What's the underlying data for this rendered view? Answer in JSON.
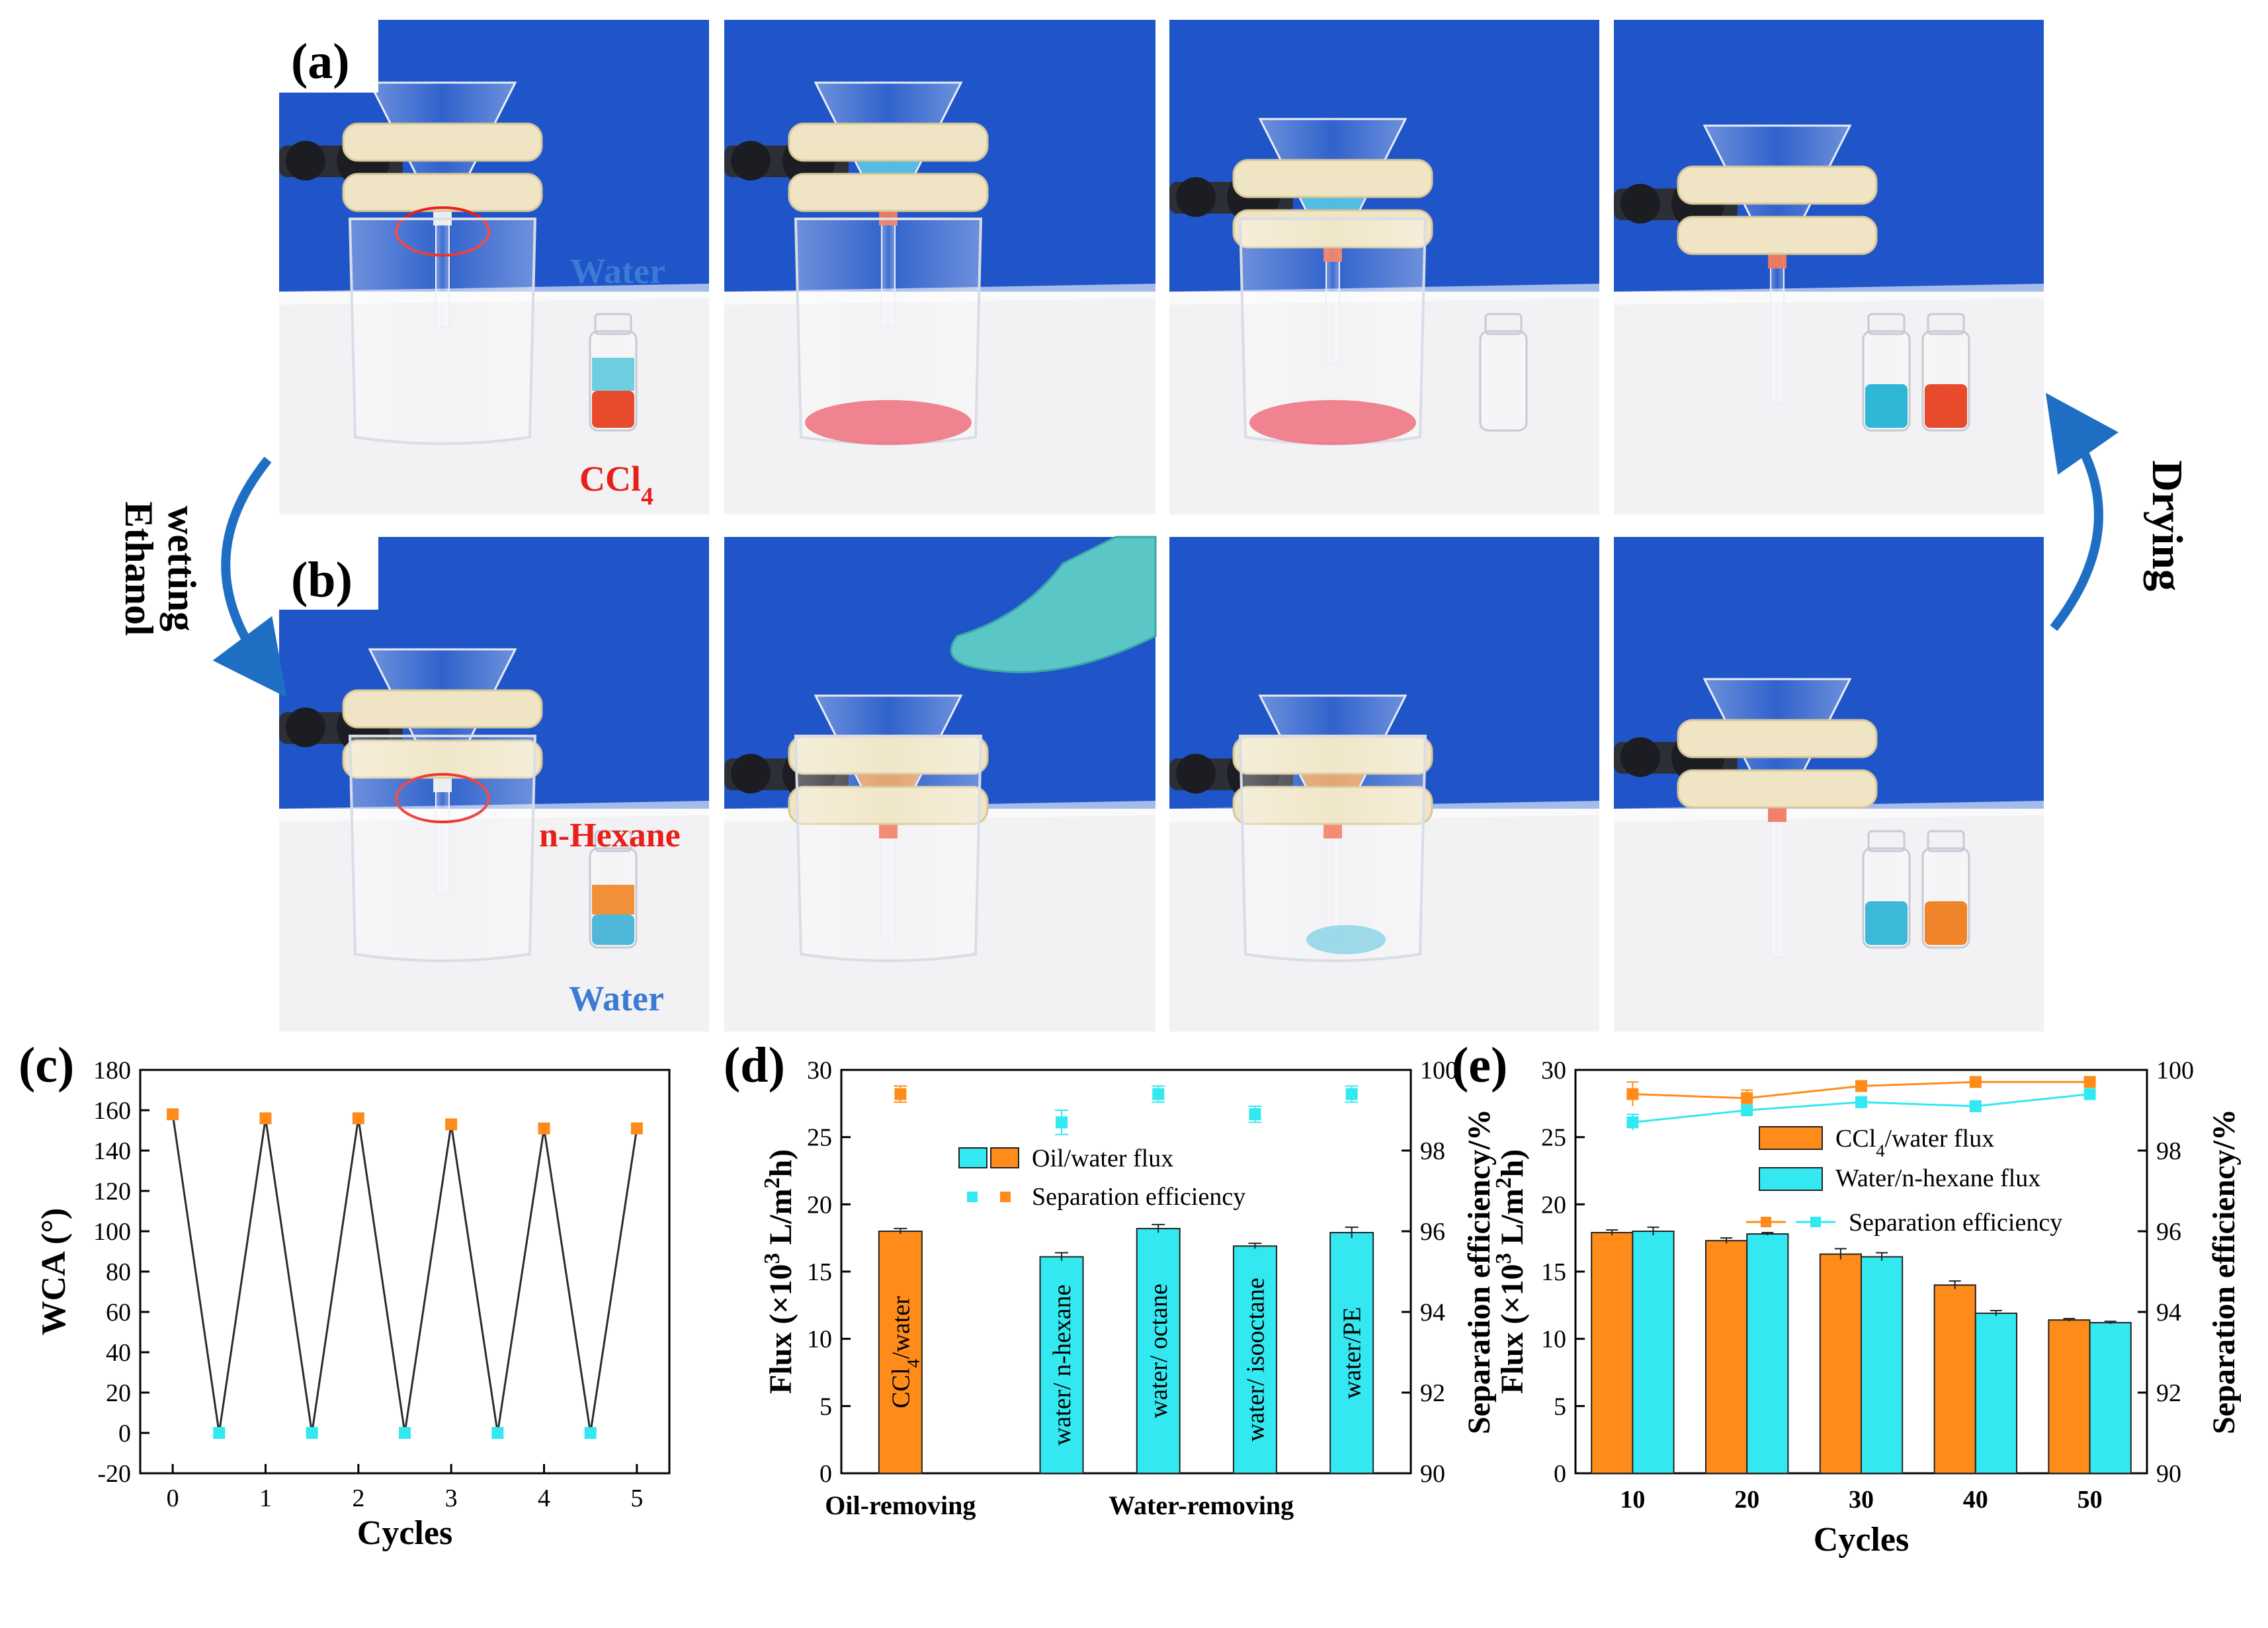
{
  "photos": {
    "panel_a": {
      "label": "(a)",
      "annotations": [
        {
          "text": "Water",
          "sub": "",
          "color": "#3a7bd5"
        },
        {
          "text": "CCl",
          "sub": "4",
          "color": "#e8201a"
        }
      ]
    },
    "panel_b": {
      "label": "(b)",
      "annotations": [
        {
          "text": "n-Hexane",
          "sub": "",
          "color": "#e8201a"
        },
        {
          "text": "Water",
          "sub": "",
          "color": "#3a7bd5"
        }
      ]
    },
    "left_arrow_text": [
      "Ethanol",
      "wetting"
    ],
    "right_arrow_text": "Drying",
    "colors": {
      "backdrop": "#1f55c8",
      "table": "#f2f2f4",
      "arrow": "#1e6fc4"
    }
  },
  "charts": [
    {
      "panel_label": "(c)",
      "type": "line",
      "xlabel": "Cycles",
      "ylabel": "WCA (°)",
      "xlim": [
        -0.35,
        5.35
      ],
      "ylim": [
        -20,
        180
      ],
      "xticks": [
        0,
        1,
        2,
        3,
        4,
        5
      ],
      "yticks": [
        -20,
        0,
        20,
        40,
        60,
        80,
        100,
        120,
        140,
        160,
        180
      ],
      "line": {
        "x": [
          0,
          0.5,
          1,
          1.5,
          2,
          2.5,
          3,
          3.5,
          4,
          4.5,
          5
        ],
        "y": [
          158,
          0,
          156,
          0,
          156,
          0,
          153,
          0,
          151,
          0,
          151
        ],
        "color": "#2b2b2b"
      },
      "points": [
        {
          "x": 0,
          "y": 158,
          "color": "#ff8c1a"
        },
        {
          "x": 0.5,
          "y": 0,
          "color": "#33e8f0"
        },
        {
          "x": 1,
          "y": 156,
          "color": "#ff8c1a"
        },
        {
          "x": 1.5,
          "y": 0,
          "color": "#33e8f0"
        },
        {
          "x": 2,
          "y": 156,
          "color": "#ff8c1a"
        },
        {
          "x": 2.5,
          "y": 0,
          "color": "#33e8f0"
        },
        {
          "x": 3,
          "y": 153,
          "color": "#ff8c1a"
        },
        {
          "x": 3.5,
          "y": 0,
          "color": "#33e8f0"
        },
        {
          "x": 4,
          "y": 151,
          "color": "#ff8c1a"
        },
        {
          "x": 4.5,
          "y": 0,
          "color": "#33e8f0"
        },
        {
          "x": 5,
          "y": 151,
          "color": "#ff8c1a"
        }
      ]
    },
    {
      "panel_label": "(d)",
      "type": "bar",
      "ylabel_left": {
        "pre": "Flux (×10",
        "sup": "3",
        "mid": " L/m",
        "sup2": "2",
        "post": "h)"
      },
      "ylabel_right": "Separation efficiency/%",
      "ylim_left": [
        0,
        30
      ],
      "ylim_right": [
        90,
        100
      ],
      "yticks_left": [
        0,
        5,
        10,
        15,
        20,
        25,
        30
      ],
      "yticks_right": [
        90,
        92,
        94,
        96,
        98,
        100
      ],
      "group_labels": [
        {
          "text": "Oil-removing",
          "center": 1
        },
        {
          "text": "Water-removing",
          "center": 3.8
        }
      ],
      "bars": [
        {
          "x": 1,
          "label": "CCl",
          "label_sub": "4",
          "label_post": "/water",
          "flux": 18.0,
          "flux_err": 0.2,
          "efficiency": 99.4,
          "eff_err": 0.2,
          "color": "#ff8c1a"
        },
        {
          "x": 2.5,
          "label": "water/ n-hexane",
          "label_sub": "",
          "label_post": "",
          "flux": 16.1,
          "flux_err": 0.3,
          "efficiency": 98.7,
          "eff_err": 0.3,
          "color": "#33e8f0"
        },
        {
          "x": 3.4,
          "label": "water/ octane",
          "label_sub": "",
          "label_post": "",
          "flux": 18.2,
          "flux_err": 0.3,
          "efficiency": 99.4,
          "eff_err": 0.2,
          "color": "#33e8f0"
        },
        {
          "x": 4.3,
          "label": "water/ isooctane",
          "label_sub": "",
          "label_post": "",
          "flux": 16.9,
          "flux_err": 0.2,
          "efficiency": 98.9,
          "eff_err": 0.2,
          "color": "#33e8f0"
        },
        {
          "x": 5.2,
          "label": "water/PE",
          "label_sub": "",
          "label_post": "",
          "flux": 17.9,
          "flux_err": 0.4,
          "efficiency": 99.4,
          "eff_err": 0.2,
          "color": "#33e8f0"
        }
      ],
      "xlim": [
        0.45,
        5.75
      ],
      "legend": [
        {
          "kind": "bars",
          "text": "Oil/water flux",
          "colors": [
            "#33e8f0",
            "#ff8c1a"
          ]
        },
        {
          "kind": "points",
          "text": "Separation efficiency",
          "colors": [
            "#33e8f0",
            "#ff8c1a"
          ]
        }
      ]
    },
    {
      "panel_label": "(e)",
      "type": "bar",
      "xlabel": "Cycles",
      "ylabel_left": {
        "pre": "Flux (×10",
        "sup": "3",
        "mid": " L/m",
        "sup2": "2",
        "post": "h)"
      },
      "ylabel_right": "Separation efficiency/%",
      "ylim_left": [
        0,
        30
      ],
      "ylim_right": [
        90,
        100
      ],
      "yticks_left": [
        0,
        5,
        10,
        15,
        20,
        25,
        30
      ],
      "yticks_right": [
        90,
        92,
        94,
        96,
        98,
        100
      ],
      "categories": [
        "10",
        "20",
        "30",
        "40",
        "50"
      ],
      "series": [
        {
          "name": "CCl4/water flux",
          "name_main": "CCl",
          "name_sub": "4",
          "name_post": "/water flux",
          "color": "#ff8c1a",
          "flux": [
            17.9,
            17.3,
            16.3,
            14.0,
            11.4
          ],
          "flux_err": [
            0.2,
            0.2,
            0.4,
            0.3,
            0.1
          ]
        },
        {
          "name": "Water/n-hexane flux",
          "name_main": "Water/n-hexane flux",
          "name_sub": "",
          "name_post": "",
          "color": "#33e8f0",
          "flux": [
            18.0,
            17.8,
            16.1,
            11.9,
            11.2
          ],
          "flux_err": [
            0.3,
            0.1,
            0.3,
            0.2,
            0.1
          ]
        }
      ],
      "efficiency": [
        {
          "color": "#ff8c1a",
          "values": [
            99.4,
            99.3,
            99.6,
            99.7,
            99.7
          ],
          "err": [
            0.3,
            0.2,
            0.1,
            0.1,
            0.1
          ]
        },
        {
          "color": "#33e8f0",
          "values": [
            98.7,
            99.0,
            99.2,
            99.1,
            99.4
          ],
          "err": [
            0.2,
            0.1,
            0.1,
            0.1,
            0.1
          ]
        }
      ],
      "legend_line": "Separation efficiency"
    }
  ]
}
